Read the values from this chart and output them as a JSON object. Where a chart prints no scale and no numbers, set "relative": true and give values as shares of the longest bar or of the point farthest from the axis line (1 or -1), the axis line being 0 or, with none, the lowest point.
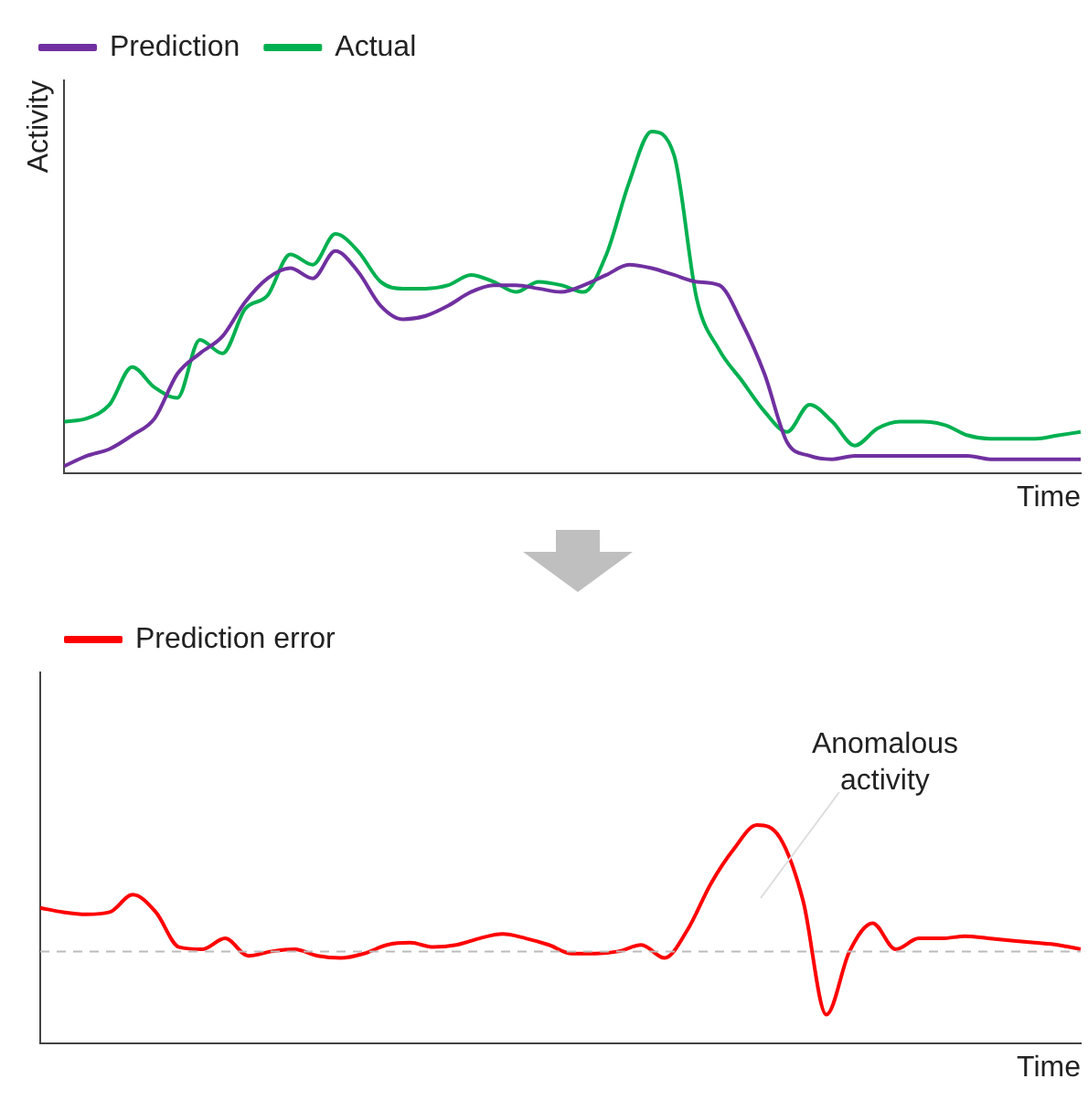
{
  "chart_data": [
    {
      "type": "line",
      "relative": true,
      "ylabel": "Activity",
      "xlabel": "Time",
      "legend": "top left",
      "marker": "none",
      "line_style": "solid",
      "grid": false,
      "tick_labels": false,
      "categories": [
        null,
        null,
        null,
        null,
        null,
        null,
        null,
        null,
        null,
        null,
        null,
        null,
        null,
        null,
        null,
        null,
        null,
        null,
        null,
        null,
        null,
        null,
        null,
        null,
        null,
        null,
        null,
        null,
        null,
        null,
        null,
        null,
        null,
        null,
        null,
        null,
        null,
        null,
        null,
        null,
        null,
        null,
        null,
        null,
        null,
        null
      ],
      "series": [
        {
          "name": "Prediction",
          "color": "#7030a0",
          "values": [
            0.02,
            0.05,
            0.07,
            0.11,
            0.16,
            0.29,
            0.35,
            0.4,
            0.5,
            0.57,
            0.6,
            0.57,
            0.65,
            0.59,
            0.49,
            0.45,
            0.46,
            0.49,
            0.53,
            0.55,
            0.55,
            0.54,
            0.53,
            0.55,
            0.58,
            0.61,
            0.6,
            0.58,
            0.56,
            0.55,
            0.44,
            0.29,
            0.09,
            0.05,
            0.04,
            0.05,
            0.05,
            0.05,
            0.05,
            0.05,
            0.05,
            0.04,
            0.04,
            0.04,
            0.04,
            0.04
          ]
        },
        {
          "name": "Actual",
          "color": "#00b050",
          "values": [
            0.15,
            0.16,
            0.2,
            0.31,
            0.25,
            0.22,
            0.39,
            0.35,
            0.48,
            0.52,
            0.64,
            0.61,
            0.7,
            0.65,
            0.56,
            0.54,
            0.54,
            0.55,
            0.58,
            0.56,
            0.53,
            0.56,
            0.55,
            0.53,
            0.64,
            0.85,
            1,
            0.93,
            0.51,
            0.36,
            0.27,
            0.18,
            0.12,
            0.2,
            0.15,
            0.08,
            0.13,
            0.15,
            0.15,
            0.14,
            0.11,
            0.1,
            0.1,
            0.1,
            0.11,
            0.12
          ]
        }
      ]
    },
    {
      "type": "line",
      "relative": true,
      "xlabel": "Time",
      "legend": "top left",
      "marker": "none",
      "line_style": "solid",
      "grid": false,
      "tick_labels": false,
      "categories": [
        null,
        null,
        null,
        null,
        null,
        null,
        null,
        null,
        null,
        null,
        null,
        null,
        null,
        null,
        null,
        null,
        null,
        null,
        null,
        null,
        null,
        null,
        null,
        null,
        null,
        null,
        null,
        null,
        null,
        null,
        null,
        null,
        null,
        null,
        null,
        null,
        null,
        null,
        null,
        null,
        null,
        null,
        null,
        null,
        null,
        null
      ],
      "series": [
        {
          "name": "Prediction error",
          "color": "#ff0000",
          "values": [
            0.62,
            0.6,
            0.59,
            0.6,
            0.68,
            0.6,
            0.44,
            0.43,
            0.48,
            0.4,
            0.42,
            0.43,
            0.4,
            0.39,
            0.41,
            0.45,
            0.46,
            0.44,
            0.45,
            0.48,
            0.5,
            0.48,
            0.45,
            0.41,
            0.41,
            0.42,
            0.45,
            0.39,
            0.52,
            0.73,
            0.89,
            1,
            0.94,
            0.65,
            0.13,
            0.42,
            0.55,
            0.43,
            0.48,
            0.48,
            0.49,
            0.48,
            0.47,
            0.46,
            0.45,
            0.43
          ]
        }
      ],
      "ref_lines": [
        {
          "axis": "y",
          "value": 0.42,
          "color": "#bbbbbb",
          "line_style": "dashed"
        }
      ],
      "annotations": [
        "Anomalous activity"
      ]
    }
  ]
}
